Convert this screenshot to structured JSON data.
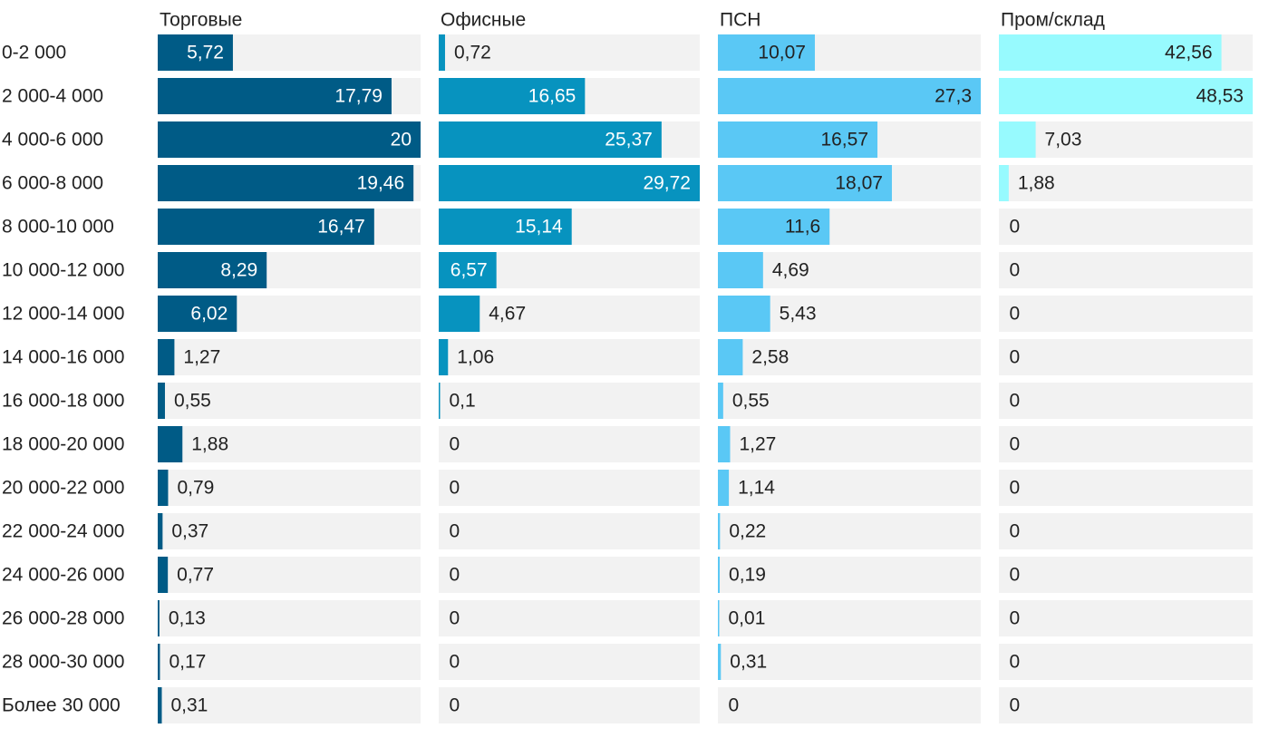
{
  "chart_data": {
    "type": "bar",
    "orientation": "horizontal",
    "layout": "small-multiples",
    "categories": [
      "0-2 000",
      "2 000-4 000",
      "4 000-6 000",
      "6 000-8 000",
      "8 000-10 000",
      "10 000-12 000",
      "12 000-14 000",
      "14 000-16 000",
      "16 000-18 000",
      "18 000-20 000",
      "20 000-22 000",
      "22 000-24 000",
      "24 000-26 000",
      "26 000-28 000",
      "28 000-30 000",
      "Более 30 000"
    ],
    "series": [
      {
        "name": "Торговые",
        "color": "#005b86",
        "max": 20,
        "values": [
          5.72,
          17.79,
          20,
          19.46,
          16.47,
          8.29,
          6.02,
          1.27,
          0.55,
          1.88,
          0.79,
          0.37,
          0.77,
          0.13,
          0.17,
          0.31
        ],
        "labels": [
          "5,72",
          "17,79",
          "20",
          "19,46",
          "16,47",
          "8,29",
          "6,02",
          "1,27",
          "0,55",
          "1,88",
          "0,79",
          "0,37",
          "0,77",
          "0,13",
          "0,17",
          "0,31"
        ]
      },
      {
        "name": "Офисные",
        "color": "#0793bf",
        "max": 29.72,
        "values": [
          0.72,
          16.65,
          25.37,
          29.72,
          15.14,
          6.57,
          4.67,
          1.06,
          0.1,
          0,
          0,
          0,
          0,
          0,
          0,
          0
        ],
        "labels": [
          "0,72",
          "16,65",
          "25,37",
          "29,72",
          "15,14",
          "6,57",
          "4,67",
          "1,06",
          "0,1",
          "0",
          "0",
          "0",
          "0",
          "0",
          "0",
          "0"
        ]
      },
      {
        "name": "ПСН",
        "color": "#5ac8f5",
        "max": 27.3,
        "values": [
          10.07,
          27.3,
          16.57,
          18.07,
          11.6,
          4.69,
          5.43,
          2.58,
          0.55,
          1.27,
          1.14,
          0.22,
          0.19,
          0.01,
          0.31,
          0
        ],
        "labels": [
          "10,07",
          "27,3",
          "16,57",
          "18,07",
          "11,6",
          "4,69",
          "5,43",
          "2,58",
          "0,55",
          "1,27",
          "1,14",
          "0,22",
          "0,19",
          "0,01",
          "0,31",
          "0"
        ]
      },
      {
        "name": "Пром/склад",
        "color": "#97fafe",
        "max": 48.53,
        "values": [
          42.56,
          48.53,
          7.03,
          1.88,
          0,
          0,
          0,
          0,
          0,
          0,
          0,
          0,
          0,
          0,
          0,
          0
        ],
        "labels": [
          "42,56",
          "48,53",
          "7,03",
          "1,88",
          "0",
          "0",
          "0",
          "0",
          "0",
          "0",
          "0",
          "0",
          "0",
          "0",
          "0",
          "0"
        ]
      }
    ],
    "colors": {
      "track": "#f2f2f2",
      "text_dark": "#222222",
      "text_light": "#ffffff"
    },
    "grid": false,
    "legend": "none"
  }
}
